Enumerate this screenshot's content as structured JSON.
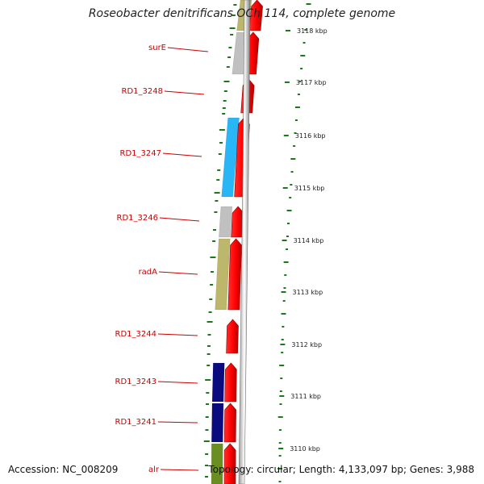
{
  "title": "Roseobacter denitrificans OCh 114, complete genome",
  "footer": {
    "accession": "Accession: NC_008209",
    "topology": "Topology: circular; Length: 4,133,097 bp; Genes: 3,988"
  },
  "colors": {
    "label": "#cc0000",
    "forward_gene": "#ff0000",
    "backbone": "#808080",
    "gc_ticks": "#1a7a1a"
  },
  "scale_ticks": [
    "3118 kbp",
    "3117 kbp",
    "3116 kbp",
    "3115 kbp",
    "3114 kbp",
    "3113 kbp",
    "3112 kbp",
    "3111 kbp",
    "3110 kbp"
  ],
  "genes": [
    {
      "label": "surE",
      "category_color": "#c0c0c0"
    },
    {
      "label": "RD1_3248",
      "category_color": ""
    },
    {
      "label": "RD1_3247",
      "category_color": "#29b6f6"
    },
    {
      "label": "RD1_3246",
      "category_color": "#c0c0c0"
    },
    {
      "label": "radA",
      "category_color": "#bdb76b"
    },
    {
      "label": "RD1_3244",
      "category_color": ""
    },
    {
      "label": "RD1_3243",
      "category_color": "#0b0b80"
    },
    {
      "label": "RD1_3241",
      "category_color": "#0b0b80"
    },
    {
      "label": "alr",
      "category_color": "#6b8e23"
    }
  ]
}
